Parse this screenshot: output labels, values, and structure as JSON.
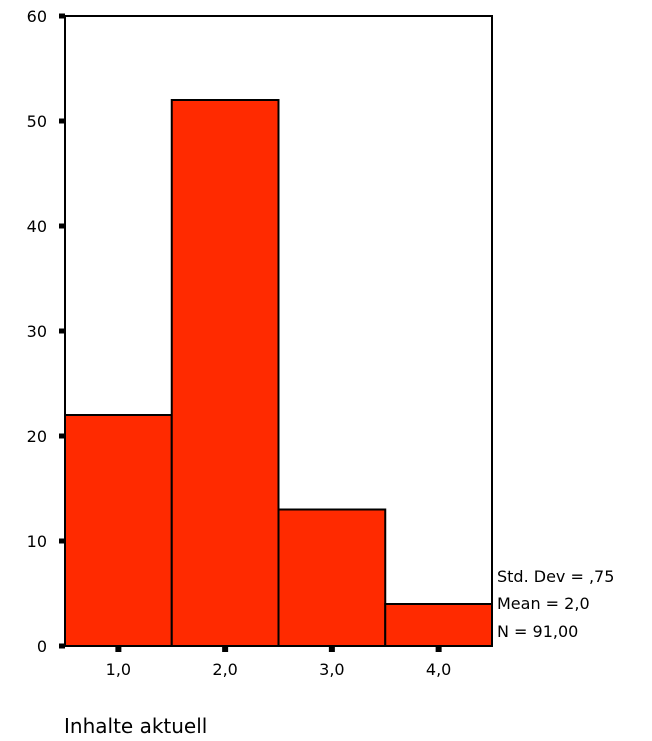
{
  "chart_data": {
    "type": "bar",
    "categories": [
      "1,0",
      "2,0",
      "3,0",
      "4,0"
    ],
    "values": [
      22,
      52,
      13,
      4
    ],
    "xlabel": "Inhalte aktuell",
    "ylabel": "",
    "ylim": [
      0,
      60
    ],
    "yticks": [
      "0",
      "10",
      "20",
      "30",
      "40",
      "50",
      "60"
    ],
    "ytick_values": [
      0,
      10,
      20,
      30,
      40,
      50,
      60
    ],
    "bar_color": "#ff2a00",
    "grid": false,
    "stats": {
      "std_dev": "Std. Dev = ,75",
      "mean": "Mean = 2,0",
      "n": "N = 91,00"
    }
  }
}
